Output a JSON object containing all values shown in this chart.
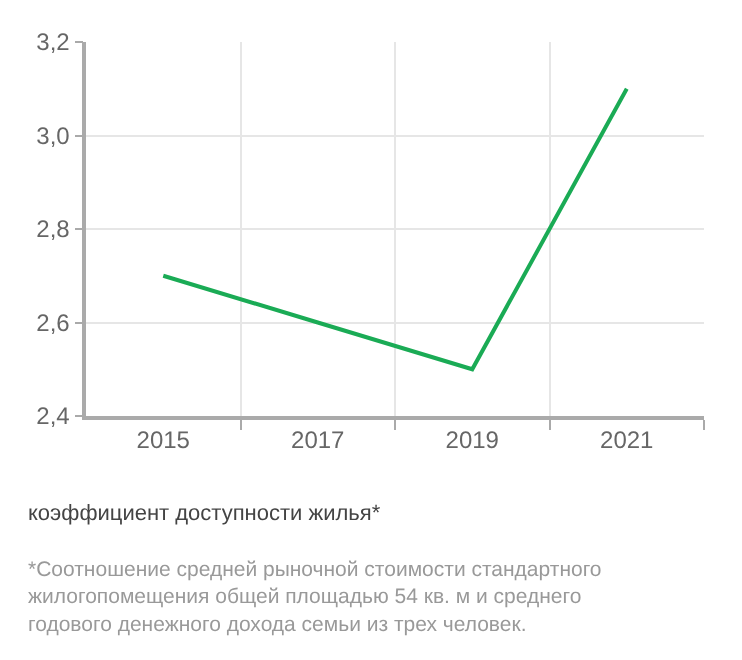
{
  "chart_data": {
    "type": "line",
    "xlabel": "коэффициент доступности жилья*",
    "categories": [
      "2015",
      "2017",
      "2019",
      "2021"
    ],
    "series": [
      {
        "color": "#1aab55",
        "values": [
          2.7,
          2.6,
          2.5,
          3.1
        ]
      }
    ],
    "ylim": [
      2.4,
      3.2
    ],
    "yticks": [
      {
        "value": 2.4,
        "label": "2,4"
      },
      {
        "value": 2.6,
        "label": "2,6"
      },
      {
        "value": 2.8,
        "label": "2,8"
      },
      {
        "value": 3.0,
        "label": "3,0"
      },
      {
        "value": 3.2,
        "label": "3,2"
      }
    ],
    "grid": true,
    "marker": "none",
    "line_style": "solid",
    "legend": false,
    "annotations": [
      "*Соотношение средней рыночной стоимости стандартного\nжилогопомещения общей площадью 54 кв. м и среднего\nгодового денежного дохода семьи из трех человек."
    ]
  }
}
